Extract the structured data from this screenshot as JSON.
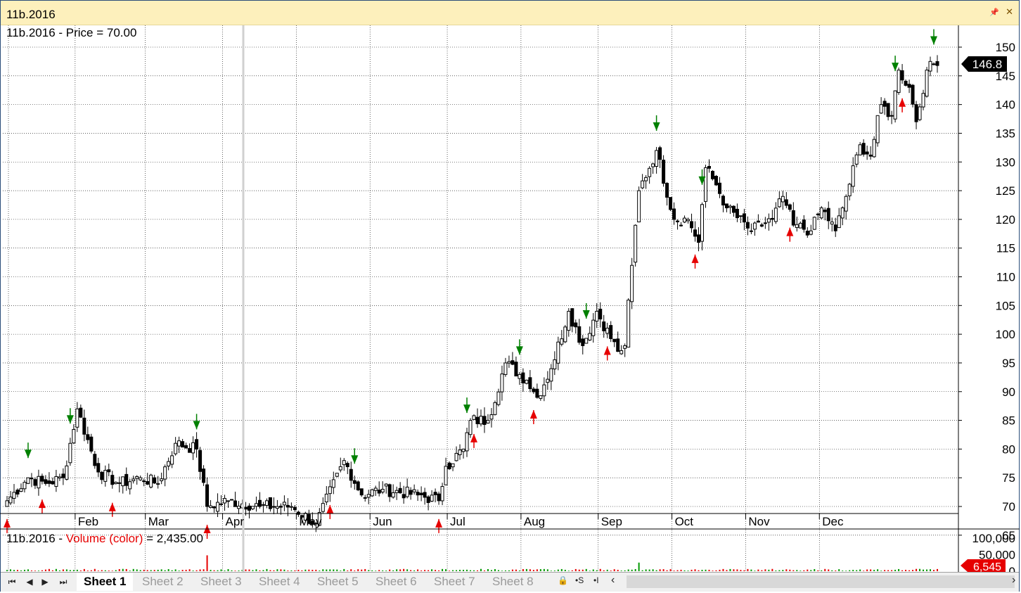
{
  "window": {
    "title": "11b.2016"
  },
  "price_pane": {
    "label_symbol": "11b.2016",
    "label_rest": " - Price = 70.00",
    "current_price": "146.8",
    "price_ticks": [
      "150",
      "145",
      "140",
      "135",
      "130",
      "125",
      "120",
      "115",
      "110",
      "105",
      "100",
      "95",
      "90",
      "85",
      "80",
      "75",
      "70",
      "65"
    ],
    "months": [
      "Feb",
      "Mar",
      "Apr",
      "May",
      "Jun",
      "Jul",
      "Aug",
      "Sep",
      "Oct",
      "Nov",
      "Dec"
    ]
  },
  "volume_pane": {
    "label_symbol": "11b.2016",
    "label_dash": " - ",
    "label_indicator": "Volume (color)",
    "label_value": " = 2,435.00",
    "ticks": [
      "100,000",
      "50,000",
      "0"
    ],
    "current_volume": "6,545"
  },
  "tabs": {
    "sheets": [
      "Sheet 1",
      "Sheet 2",
      "Sheet 3",
      "Sheet 4",
      "Sheet 5",
      "Sheet 6",
      "Sheet 7",
      "Sheet 8"
    ],
    "active": "Sheet 1",
    "tools": [
      "lock-icon",
      "scroll-sync-icon",
      "insert-icon"
    ]
  },
  "colors": {
    "up_arrow": "#e60000",
    "down_arrow": "#008000",
    "candle": "#000000",
    "volume_up": "#009900",
    "volume_down": "#e60000",
    "grid": "#000000"
  },
  "chart_data": {
    "type": "candlestick",
    "title": "11b.2016",
    "ylim": [
      63,
      153
    ],
    "x_axis": "trading days, Jan–Dec 2016",
    "close_waypoints": [
      {
        "day": 0,
        "close": 71
      },
      {
        "day": 6,
        "close": 75
      },
      {
        "day": 11,
        "close": 74
      },
      {
        "day": 16,
        "close": 75
      },
      {
        "day": 20,
        "close": 87
      },
      {
        "day": 26,
        "close": 76
      },
      {
        "day": 32,
        "close": 74
      },
      {
        "day": 38,
        "close": 75
      },
      {
        "day": 43,
        "close": 74
      },
      {
        "day": 48,
        "close": 81
      },
      {
        "day": 54,
        "close": 80
      },
      {
        "day": 57,
        "close": 70
      },
      {
        "day": 63,
        "close": 71
      },
      {
        "day": 72,
        "close": 70
      },
      {
        "day": 81,
        "close": 70
      },
      {
        "day": 88,
        "close": 67
      },
      {
        "day": 96,
        "close": 78
      },
      {
        "day": 101,
        "close": 72
      },
      {
        "day": 107,
        "close": 73
      },
      {
        "day": 117,
        "close": 72
      },
      {
        "day": 123,
        "close": 71
      },
      {
        "day": 125,
        "close": 77
      },
      {
        "day": 130,
        "close": 80
      },
      {
        "day": 132,
        "close": 85
      },
      {
        "day": 137,
        "close": 85
      },
      {
        "day": 142,
        "close": 95
      },
      {
        "day": 148,
        "close": 92
      },
      {
        "day": 151,
        "close": 89
      },
      {
        "day": 155,
        "close": 94
      },
      {
        "day": 160,
        "close": 104
      },
      {
        "day": 164,
        "close": 98
      },
      {
        "day": 168,
        "close": 104
      },
      {
        "day": 174,
        "close": 97
      },
      {
        "day": 176,
        "close": 98
      },
      {
        "day": 178,
        "close": 112
      },
      {
        "day": 180,
        "close": 125
      },
      {
        "day": 185,
        "close": 132
      },
      {
        "day": 190,
        "close": 120
      },
      {
        "day": 194,
        "close": 120
      },
      {
        "day": 197,
        "close": 116
      },
      {
        "day": 199,
        "close": 129
      },
      {
        "day": 202,
        "close": 126
      },
      {
        "day": 205,
        "close": 122
      },
      {
        "day": 212,
        "close": 118
      },
      {
        "day": 218,
        "close": 120
      },
      {
        "day": 221,
        "close": 124
      },
      {
        "day": 224,
        "close": 119
      },
      {
        "day": 229,
        "close": 118
      },
      {
        "day": 232,
        "close": 122
      },
      {
        "day": 236,
        "close": 118
      },
      {
        "day": 239,
        "close": 124
      },
      {
        "day": 243,
        "close": 133
      },
      {
        "day": 246,
        "close": 131
      },
      {
        "day": 249,
        "close": 140
      },
      {
        "day": 252,
        "close": 138
      },
      {
        "day": 254,
        "close": 146
      },
      {
        "day": 257,
        "close": 143
      },
      {
        "day": 259,
        "close": 137
      },
      {
        "day": 262,
        "close": 146
      },
      {
        "day": 264,
        "close": 147
      },
      {
        "day": 265,
        "close": 146.8
      }
    ],
    "buy_signal_days": [
      0,
      10,
      30,
      57,
      92,
      123,
      133,
      150,
      171,
      196,
      223,
      255
    ],
    "sell_signal_days": [
      6,
      18,
      54,
      99,
      131,
      146,
      165,
      185,
      198,
      253,
      264
    ],
    "volume_ylim": [
      0,
      100000
    ],
    "volume_spikes": [
      {
        "day": 57,
        "volume": 48000
      },
      {
        "day": 180,
        "volume": 26000
      }
    ],
    "last_volume": 6545
  }
}
